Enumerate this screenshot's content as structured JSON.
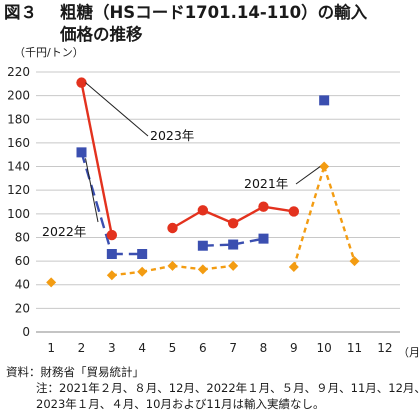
{
  "title": {
    "fig": "図３",
    "line1": "粗糖（HSコード1701.14-110）の輸入",
    "line2": "価格の推移"
  },
  "unit_label": "（千円/トン）",
  "month_unit": "（月）",
  "notes": {
    "source": "資料：財務省「貿易統計」",
    "note1": "注：2021年２月、８月、12月、2022年１月、５月、９月、11月、12月、",
    "note2": "2023年１月、４月、10月および11月は輸入実績なし。"
  },
  "chart_data": {
    "type": "line",
    "title": "",
    "xlabel": "（月）",
    "ylabel": "（千円/トン）",
    "categories": [
      "1",
      "2",
      "3",
      "4",
      "5",
      "6",
      "7",
      "8",
      "9",
      "10",
      "11",
      "12"
    ],
    "ylim": [
      0,
      220
    ],
    "yticks": [
      0,
      20,
      40,
      60,
      80,
      100,
      120,
      140,
      160,
      180,
      200,
      220
    ],
    "grid": true,
    "series": [
      {
        "name": "2021年",
        "color": "#f39c12",
        "dash": "dashed",
        "marker": "diamond",
        "values": [
          42,
          null,
          48,
          51,
          56,
          53,
          56,
          null,
          55,
          140,
          60,
          null
        ]
      },
      {
        "name": "2022年",
        "color": "#3b4fb0",
        "dash": "longdash",
        "marker": "square",
        "values": [
          null,
          152,
          66,
          66,
          null,
          73,
          74,
          79,
          null,
          196,
          null,
          null
        ]
      },
      {
        "name": "2023年",
        "color": "#e3321e",
        "dash": "solid",
        "marker": "circle",
        "values": [
          null,
          211,
          82,
          null,
          88,
          103,
          92,
          106,
          102,
          null,
          null,
          null
        ]
      }
    ],
    "annotations": [
      {
        "text": "2023年",
        "series": 2
      },
      {
        "text": "2022年",
        "series": 1
      },
      {
        "text": "2021年",
        "series": 0
      }
    ]
  }
}
